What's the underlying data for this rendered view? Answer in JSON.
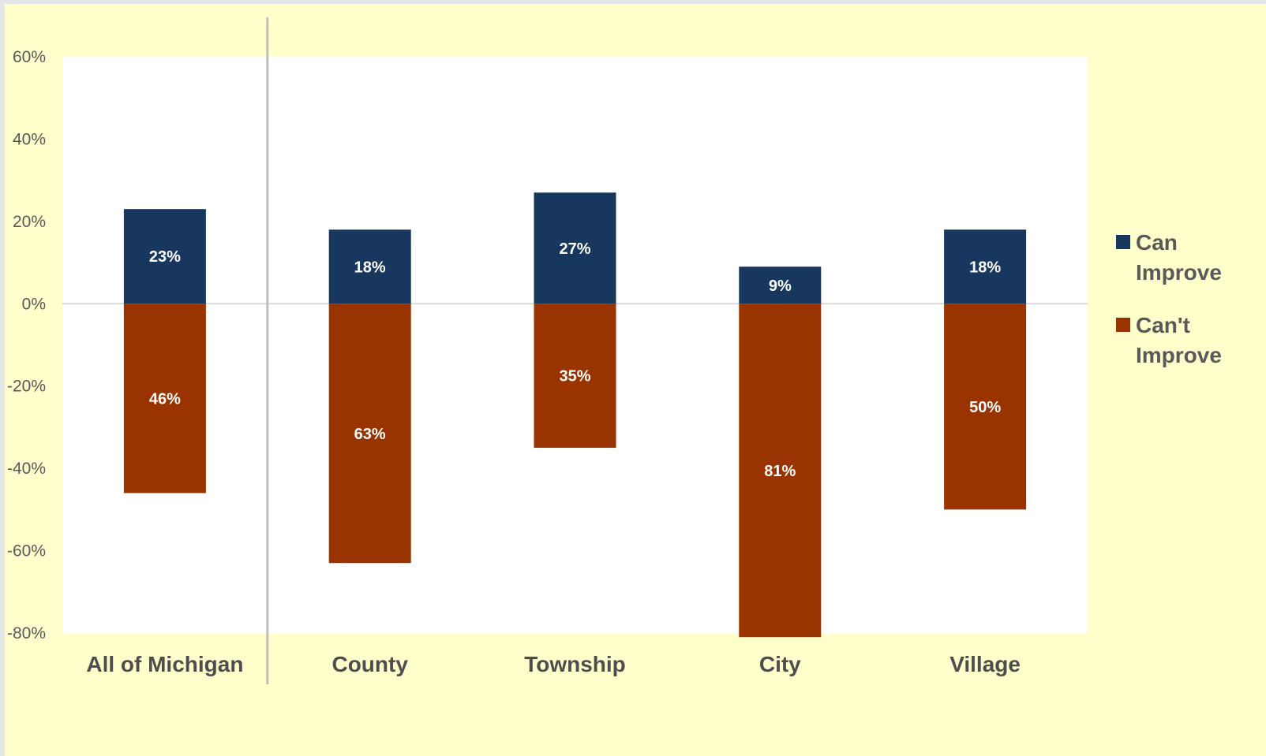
{
  "chart_data": {
    "type": "bar",
    "stacked": true,
    "categories": [
      "All of Michigan",
      "County",
      "Township",
      "City",
      "Village"
    ],
    "series": [
      {
        "name": "Can Improve",
        "legend_lines": [
          "Can",
          "Improve"
        ],
        "color": "#17375e",
        "values": [
          23,
          18,
          27,
          9,
          18
        ],
        "labels": [
          "23%",
          "18%",
          "27%",
          "9%",
          "18%"
        ]
      },
      {
        "name": "Can't Improve",
        "legend_lines": [
          "Can't",
          "Improve"
        ],
        "color": "#993300",
        "values": [
          -46,
          -63,
          -35,
          -81,
          -50
        ],
        "labels": [
          "46%",
          "63%",
          "35%",
          "81%",
          "50%"
        ]
      }
    ],
    "ylim": [
      -80,
      60
    ],
    "yticks": [
      60,
      40,
      20,
      0,
      -20,
      -40,
      -60,
      -80
    ],
    "ytick_labels": [
      "60%",
      "40%",
      "20%",
      "0%",
      "-20%",
      "-40%",
      "-60%",
      "-80%"
    ],
    "title": "",
    "xlabel": "",
    "ylabel": "",
    "legend_position": "right",
    "grid": false,
    "colors": {
      "background": "#ffffcc",
      "plot_area": "#ffffff",
      "zero_line": "#d9d9d9",
      "divider": "#bfbfbf"
    }
  }
}
